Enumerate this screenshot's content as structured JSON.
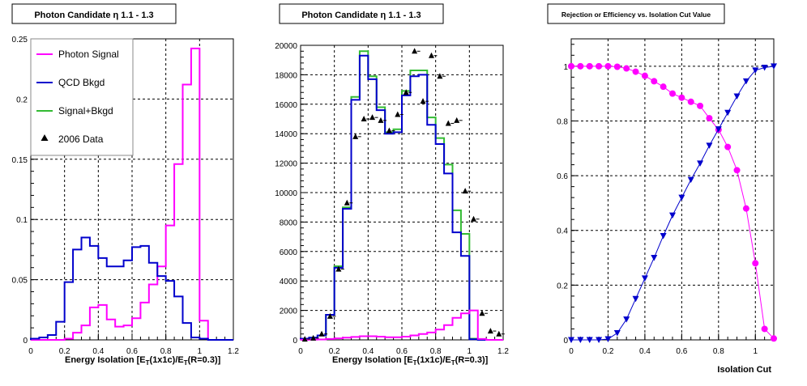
{
  "chart_data": [
    {
      "type": "line",
      "title": "Photon Candidate η 1.1 - 1.3",
      "xlabel": "Energy Isolation [E_T(1x1c)/E_T(R=0.3)]",
      "xlim": [
        0,
        1.2
      ],
      "ylim": [
        0,
        0.25
      ],
      "xticks": [
        0,
        0.2,
        0.4,
        0.6,
        0.8,
        1,
        1.2
      ],
      "yticks": [
        0,
        0.05,
        0.1,
        0.15,
        0.2,
        0.25
      ],
      "ytick_labels": [
        "0",
        "0.05",
        "0.1",
        "0.15",
        "0.2",
        "0.25"
      ],
      "grid": true,
      "legend_position": "top-left",
      "bin_edges": [
        0,
        0.05,
        0.1,
        0.15,
        0.2,
        0.25,
        0.3,
        0.35,
        0.4,
        0.45,
        0.5,
        0.55,
        0.6,
        0.65,
        0.7,
        0.75,
        0.8,
        0.85,
        0.9,
        0.95,
        1.0,
        1.05,
        1.1,
        1.15,
        1.2
      ],
      "series": [
        {
          "name": "Photon Signal",
          "color": "#ff00ff",
          "kind": "step",
          "values": [
            0,
            0,
            0,
            0,
            0.001,
            0.006,
            0.012,
            0.027,
            0.029,
            0.017,
            0.011,
            0.012,
            0.018,
            0.031,
            0.046,
            0.061,
            0.095,
            0.146,
            0.212,
            0.242,
            0.016,
            0,
            0,
            0
          ]
        },
        {
          "name": "QCD Bkgd",
          "color": "#0000cc",
          "kind": "step",
          "values": [
            0.001,
            0.002,
            0.004,
            0.015,
            0.048,
            0.075,
            0.085,
            0.078,
            0.068,
            0.061,
            0.061,
            0.066,
            0.077,
            0.078,
            0.064,
            0.053,
            0.049,
            0.036,
            0.014,
            0.002,
            0.001,
            0,
            0,
            0
          ]
        }
      ],
      "legend": [
        {
          "label": "Photon Signal",
          "color": "#ff00ff",
          "marker": "line"
        },
        {
          "label": "QCD Bkgd",
          "color": "#0000cc",
          "marker": "line"
        },
        {
          "label": "Signal+Bkgd",
          "color": "#33bb33",
          "marker": "line"
        },
        {
          "label": "2006 Data",
          "color": "#000000",
          "marker": "triangle"
        }
      ]
    },
    {
      "type": "line",
      "title": "Photon Candidate η 1.1 - 1.3",
      "xlabel": "Energy Isolation [E_T(1x1c)/E_T(R=0.3)]",
      "xlim": [
        0,
        1.2
      ],
      "ylim": [
        0,
        20000
      ],
      "xticks": [
        0,
        0.2,
        0.4,
        0.6,
        0.8,
        1,
        1.2
      ],
      "yticks": [
        0,
        2000,
        4000,
        6000,
        8000,
        10000,
        12000,
        14000,
        16000,
        18000,
        20000
      ],
      "ytick_labels": [
        "0",
        "2000",
        "4000",
        "6000",
        "8000",
        "10000",
        "12000",
        "14000",
        "16000",
        "18000",
        "20000"
      ],
      "grid": true,
      "bin_edges": [
        0,
        0.05,
        0.1,
        0.15,
        0.2,
        0.25,
        0.3,
        0.35,
        0.4,
        0.45,
        0.5,
        0.55,
        0.6,
        0.65,
        0.7,
        0.75,
        0.8,
        0.85,
        0.9,
        0.95,
        1.0,
        1.05,
        1.1,
        1.15,
        1.2
      ],
      "series": [
        {
          "name": "Signal+Bkgd",
          "color": "#33bb33",
          "kind": "step",
          "values": [
            80,
            150,
            300,
            1700,
            5000,
            9000,
            16500,
            19600,
            17900,
            15800,
            14100,
            14300,
            16900,
            18300,
            18300,
            15100,
            13700,
            11900,
            8800,
            7200,
            80,
            0,
            0,
            0
          ]
        },
        {
          "name": "QCD Bkgd",
          "color": "#0000cc",
          "kind": "step",
          "values": [
            80,
            150,
            300,
            1700,
            4900,
            8900,
            16300,
            19300,
            17700,
            15600,
            14000,
            14100,
            16600,
            17900,
            18000,
            14600,
            13300,
            11300,
            7300,
            5700,
            40,
            0,
            0,
            0
          ]
        },
        {
          "name": "Photon Signal",
          "color": "#ff00ff",
          "kind": "step",
          "values": [
            10,
            20,
            30,
            60,
            100,
            150,
            200,
            250,
            250,
            220,
            180,
            180,
            220,
            300,
            400,
            500,
            700,
            1000,
            1500,
            1800,
            2000,
            60,
            0,
            0
          ]
        },
        {
          "name": "2006 Data",
          "color": "#000000",
          "kind": "points",
          "x": [
            0.025,
            0.075,
            0.125,
            0.175,
            0.225,
            0.275,
            0.325,
            0.375,
            0.425,
            0.475,
            0.525,
            0.575,
            0.625,
            0.675,
            0.725,
            0.775,
            0.825,
            0.875,
            0.925,
            0.975,
            1.025,
            1.075,
            1.125,
            1.175
          ],
          "values": [
            50,
            120,
            400,
            1600,
            4800,
            9300,
            13800,
            15000,
            15100,
            14900,
            14200,
            15300,
            16800,
            19600,
            16200,
            19300,
            17900,
            14700,
            14900,
            10100,
            8200,
            1800,
            600,
            400
          ]
        }
      ]
    },
    {
      "type": "scatter",
      "title": "Rejection or Efficiency vs. Isolation Cut Value",
      "xlabel": "Isolation Cut",
      "xlim": [
        0,
        1.1
      ],
      "ylim": [
        0,
        1.1
      ],
      "xticks": [
        0,
        0.2,
        0.4,
        0.6,
        0.8,
        1
      ],
      "yticks": [
        0,
        0.2,
        0.4,
        0.6,
        0.8,
        1
      ],
      "ytick_labels": [
        "0",
        "0.2",
        "0.4",
        "0.6",
        "0.8",
        "1"
      ],
      "grid": true,
      "x": [
        0,
        0.05,
        0.1,
        0.15,
        0.2,
        0.25,
        0.3,
        0.35,
        0.4,
        0.45,
        0.5,
        0.55,
        0.6,
        0.65,
        0.7,
        0.75,
        0.8,
        0.85,
        0.9,
        0.95,
        1.0,
        1.05,
        1.1
      ],
      "series": [
        {
          "name": "",
          "color": "#ff00ff",
          "marker": "circle",
          "values": [
            1.0,
            1.0,
            1.0,
            1.0,
            1.0,
            0.998,
            0.992,
            0.98,
            0.965,
            0.945,
            0.925,
            0.9,
            0.885,
            0.87,
            0.855,
            0.81,
            0.768,
            0.705,
            0.62,
            0.48,
            0.28,
            0.04,
            0.005
          ]
        },
        {
          "name": "",
          "color": "#0000cc",
          "marker": "triangle-down",
          "values": [
            0.0,
            0.0,
            0.0,
            0.0,
            0.003,
            0.025,
            0.075,
            0.15,
            0.225,
            0.3,
            0.38,
            0.455,
            0.52,
            0.585,
            0.645,
            0.71,
            0.77,
            0.83,
            0.89,
            0.945,
            0.985,
            0.995,
            1.0
          ]
        }
      ]
    }
  ]
}
